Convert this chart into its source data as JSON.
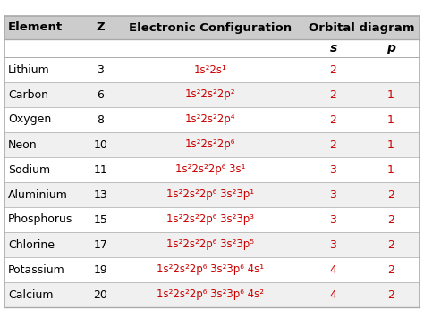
{
  "headers": [
    "Element",
    "Z",
    "Electronic Configuration",
    "Orbital diagram",
    "",
    ""
  ],
  "sub_s": "s",
  "sub_p": "p",
  "rows": [
    {
      "element": "Lithium",
      "Z": "3",
      "config": "1s²2s¹",
      "s": "2",
      "p": ""
    },
    {
      "element": "Carbon",
      "Z": "6",
      "config": "1s²2s²2p²",
      "s": "2",
      "p": "1"
    },
    {
      "element": "Oxygen",
      "Z": "8",
      "config": "1s²2s²2p⁴",
      "s": "2",
      "p": "1"
    },
    {
      "element": "Neon",
      "Z": "10",
      "config": "1s²2s²2p⁶",
      "s": "2",
      "p": "1"
    },
    {
      "element": "Sodium",
      "Z": "11",
      "config": "1s²2s²2p⁶ 3s¹",
      "s": "3",
      "p": "1"
    },
    {
      "element": "Aluminium",
      "Z": "13",
      "config": "1s²2s²2p⁶ 3s²3p¹",
      "s": "3",
      "p": "2"
    },
    {
      "element": "Phosphorus",
      "Z": "15",
      "config": "1s²2s²2p⁶ 3s²3p³",
      "s": "3",
      "p": "2"
    },
    {
      "element": "Chlorine",
      "Z": "17",
      "config": "1s²2s²2p⁶ 3s²3p⁵",
      "s": "3",
      "p": "2"
    },
    {
      "element": "Potassium",
      "Z": "19",
      "config": "1s²2s²2p⁶ 3s²3p⁶ 4s¹",
      "s": "4",
      "p": "2"
    },
    {
      "element": "Calcium",
      "Z": "20",
      "config": "1s²2s²2p⁶ 3s²3p⁶ 4s²",
      "s": "4",
      "p": "2"
    }
  ],
  "header_bg": "#cccccc",
  "white_bg": "#ffffff",
  "alt_bg": "#f0f0f0",
  "text_black": "#000000",
  "text_red": "#cc0000",
  "border_color": "#aaaaaa",
  "fig_bg": "#ffffff"
}
